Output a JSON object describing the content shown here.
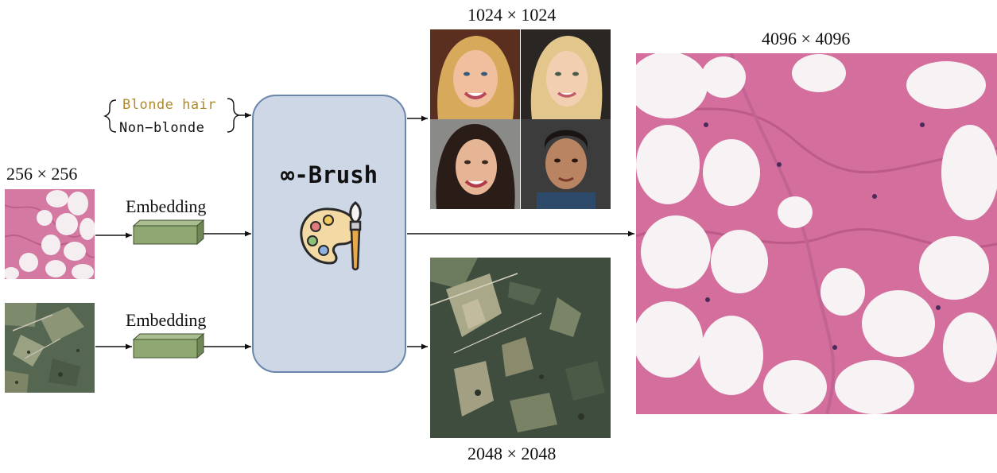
{
  "diagram": {
    "model_name": "∞-Brush",
    "inputs": {
      "text_condition": {
        "positive": "Blonde hair",
        "negative": "Non−blonde"
      },
      "image_label": "256 × 256",
      "embedding_label_1": "Embedding",
      "embedding_label_2": "Embedding"
    },
    "outputs": {
      "faces_label": "1024 × 1024",
      "histology_label": "4096 × 4096",
      "satellite_label": "2048 × 2048"
    },
    "colors": {
      "model_box_fill": "#cdd7e6",
      "model_box_stroke": "#6a86ad",
      "embedding_fill": "#8fa872",
      "embedding_stroke": "#3f4f2e",
      "blonde_text": "#b08a2a",
      "tissue_pink": "#d9749e"
    },
    "icons": [
      "palette-icon",
      "paintbrush-icon"
    ]
  }
}
